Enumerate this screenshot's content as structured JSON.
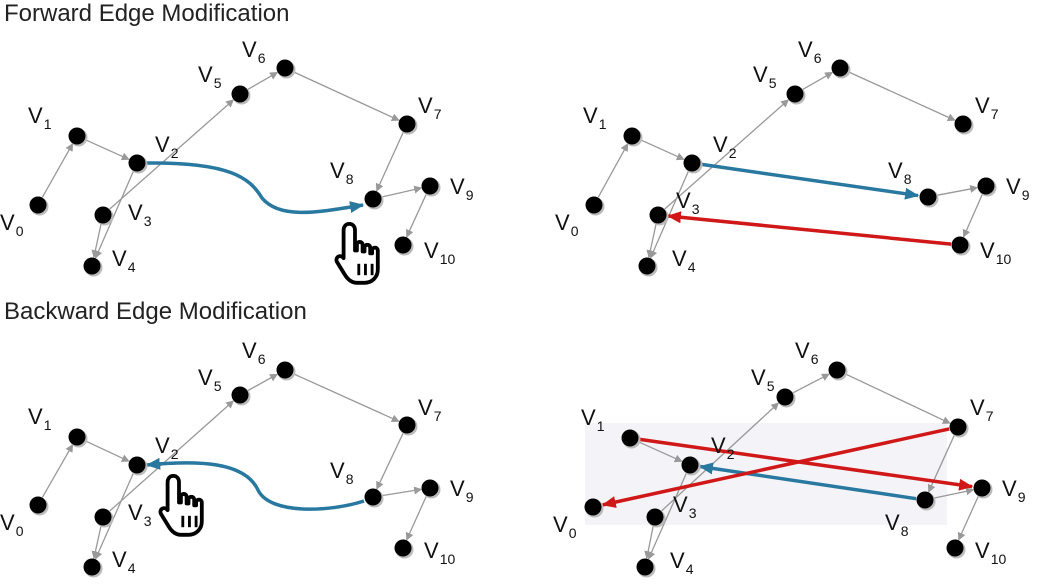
{
  "titles": {
    "forward": "Forward Edge Modification",
    "backward": "Backward Edge Modification"
  },
  "vertex_labels": [
    "V0",
    "V1",
    "V2",
    "V3",
    "V4",
    "V5",
    "V6",
    "V7",
    "V8",
    "V9",
    "V10"
  ],
  "colors": {
    "node": "#000000",
    "edge": "#999999",
    "modified_edge": "#2878a0",
    "reversed_edge": "#d01818",
    "highlight_region": "#f3f3f8"
  },
  "icons": [
    "pointer-hand-icon"
  ]
}
